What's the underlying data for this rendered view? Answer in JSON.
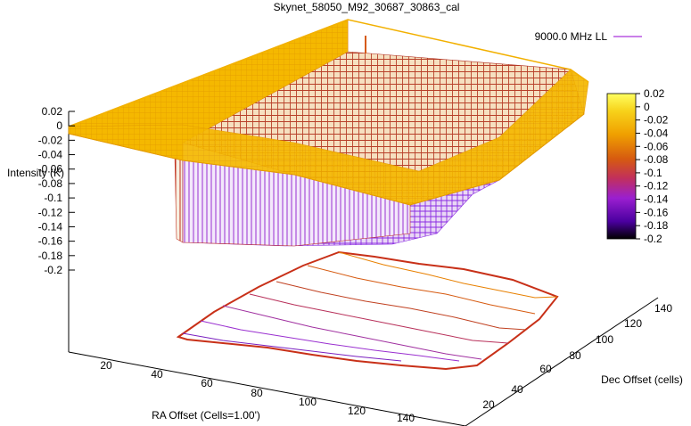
{
  "chart_data": {
    "type": "surface3d",
    "title": "Skynet_58050_M92_30687_30863_cal",
    "legend": {
      "series_label": "9000.0 MHz LL",
      "line_color": "#9400d3",
      "placement": "top-right"
    },
    "zlabel": "Intensity (K)",
    "xlabel": "RA Offset (Cells=1.00')",
    "ylabel": "Dec Offset (cells)",
    "z_ticks": [
      "0.02",
      "0",
      "-0.02",
      "-0.04",
      "-0.06",
      "-0.08",
      "-0.1",
      "-0.12",
      "-0.14",
      "-0.16",
      "-0.18",
      "-0.2"
    ],
    "x_ticks": [
      "20",
      "40",
      "60",
      "80",
      "100",
      "120",
      "140"
    ],
    "y_ticks": [
      "20",
      "40",
      "60",
      "80",
      "100",
      "120",
      "140"
    ],
    "colorbar_ticks": [
      "0.02",
      "0",
      "-0.02",
      "-0.04",
      "-0.06",
      "-0.08",
      "-0.1",
      "-0.12",
      "-0.14",
      "-0.16",
      "-0.18",
      "-0.2"
    ],
    "zlim": [
      -0.2,
      0.02
    ],
    "xlim": [
      0,
      150
    ],
    "ylim": [
      0,
      150
    ],
    "colormap": [
      "#000000",
      "#4b00a0",
      "#9a1fd0",
      "#c2305a",
      "#d65a10",
      "#f0a000",
      "#f7d21a",
      "#ffff60"
    ],
    "surface": {
      "plateau_value": 0.0,
      "depression_range": [
        -0.16,
        -0.05
      ]
    },
    "contour_levels": [
      -0.02,
      -0.04,
      -0.06,
      -0.08,
      -0.1,
      -0.12,
      -0.14
    ]
  }
}
